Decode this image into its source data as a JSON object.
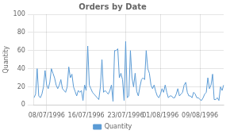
{
  "chart_data": {
    "type": "line",
    "title": "Orders by Date",
    "ylabel": "Quantity",
    "categories": [
      null,
      null,
      null,
      null,
      null,
      null,
      null,
      null,
      "08/07/1996",
      null,
      null,
      null,
      null,
      null,
      null,
      null,
      null,
      null,
      null,
      null,
      null,
      null,
      null,
      null,
      null,
      null,
      null,
      null,
      null,
      null,
      null,
      null,
      null,
      "16/07/1996",
      null,
      null,
      null,
      null,
      null,
      null,
      null,
      null,
      null,
      null,
      null,
      null,
      null,
      null,
      null,
      null,
      null,
      null,
      null,
      null,
      null,
      null,
      null,
      null,
      "23/07/1996",
      null,
      null,
      null,
      null,
      null,
      null,
      null,
      null,
      null,
      null,
      null,
      null,
      null,
      null,
      null,
      null,
      null,
      null,
      null,
      null,
      null,
      "01/08/1996",
      null,
      null,
      null,
      null,
      null,
      null,
      null,
      null,
      null,
      null,
      null,
      null,
      null,
      null,
      null,
      null,
      null,
      null,
      null,
      null,
      null,
      null,
      null,
      null,
      "09/08/1996",
      null,
      null,
      null,
      null,
      null,
      null,
      null,
      null,
      null,
      null,
      null,
      null,
      null,
      null,
      null
    ],
    "series": [
      {
        "name": "Quantity",
        "color": "#5B9BD5",
        "values": [
          8,
          12,
          40,
          10,
          8,
          12,
          20,
          38,
          22,
          18,
          25,
          40,
          35,
          30,
          22,
          18,
          22,
          28,
          18,
          16,
          14,
          20,
          42,
          30,
          34,
          20,
          15,
          10,
          16,
          14,
          16,
          5,
          22,
          16,
          65,
          22,
          18,
          14,
          12,
          10,
          8,
          6,
          20,
          50,
          14,
          16,
          14,
          12,
          16,
          22,
          4,
          60,
          60,
          62,
          30,
          35,
          28,
          5,
          70,
          8,
          10,
          60,
          30,
          20,
          35,
          15,
          10,
          20,
          28,
          30,
          28,
          60,
          40,
          35,
          22,
          18,
          22,
          15,
          10,
          8,
          12,
          18,
          14,
          22,
          14,
          8,
          10,
          10,
          8,
          8,
          12,
          18,
          10,
          12,
          14,
          22,
          25,
          14,
          10,
          10,
          8,
          14,
          12,
          8,
          8,
          6,
          5,
          8,
          12,
          14,
          30,
          18,
          22,
          34,
          6,
          6,
          8,
          5,
          20,
          16,
          22
        ]
      }
    ],
    "ylim": [
      0,
      100
    ],
    "yticks": [
      100,
      80,
      60,
      40,
      20,
      0
    ],
    "grid": true,
    "legend": "bottom"
  }
}
